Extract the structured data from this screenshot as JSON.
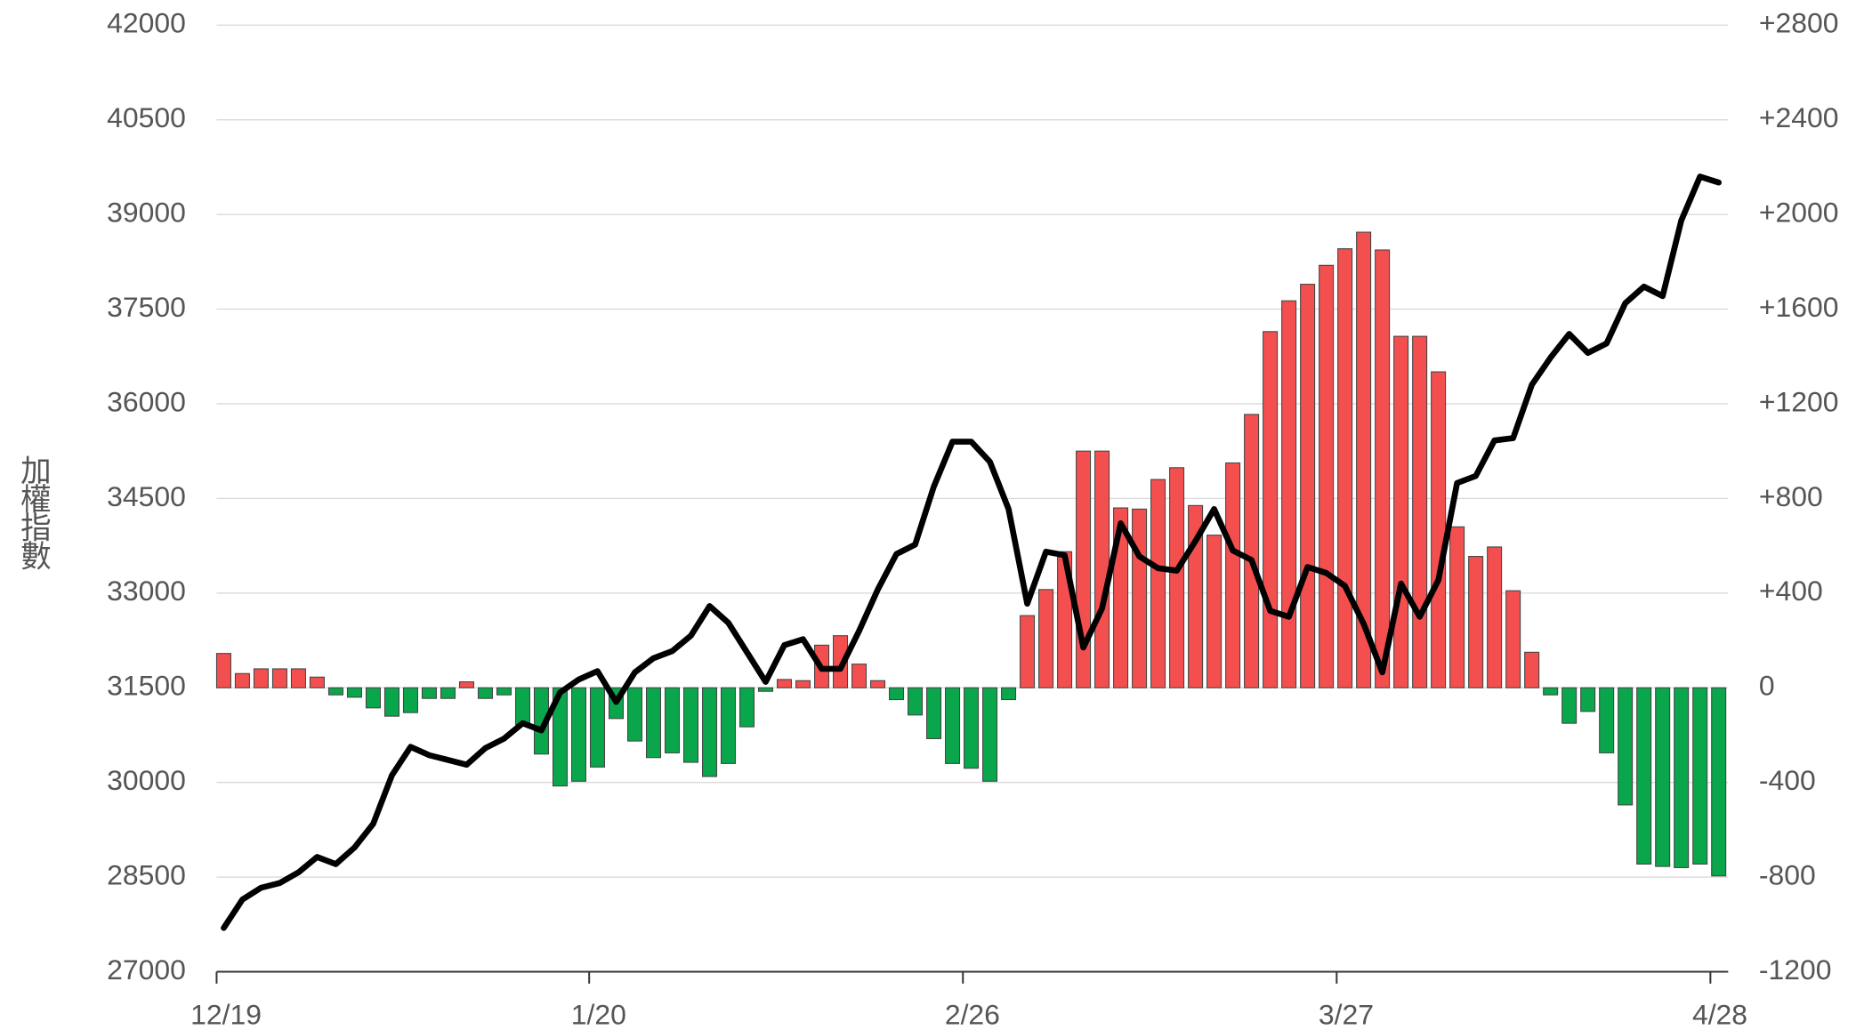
{
  "chart_data": {
    "type": "combo",
    "y_label": "加權指數",
    "categories": [
      "12/19",
      null,
      null,
      null,
      null,
      null,
      null,
      null,
      null,
      null,
      null,
      null,
      null,
      null,
      null,
      null,
      null,
      null,
      null,
      null,
      "1/20",
      null,
      null,
      null,
      null,
      null,
      null,
      null,
      null,
      null,
      null,
      null,
      null,
      null,
      null,
      null,
      null,
      null,
      null,
      null,
      "2/26",
      null,
      null,
      null,
      null,
      null,
      null,
      null,
      null,
      null,
      null,
      null,
      null,
      null,
      null,
      null,
      null,
      null,
      null,
      null,
      "3/27",
      null,
      null,
      null,
      null,
      null,
      null,
      null,
      null,
      null,
      null,
      null,
      null,
      null,
      null,
      null,
      null,
      null,
      null,
      null,
      "4/28"
    ],
    "ylim": [
      27000,
      42000
    ],
    "yticks": [
      27000,
      28500,
      30000,
      31500,
      33000,
      34500,
      36000,
      37500,
      39000,
      40500,
      42000
    ],
    "y2lim": [
      -1200,
      2800
    ],
    "y2ticks": [
      -1200,
      -800,
      -400,
      0,
      {
        "value": 400,
        "label": "+400"
      },
      {
        "value": 800,
        "label": "+800"
      },
      {
        "value": 1200,
        "label": "+1200"
      },
      {
        "value": 1600,
        "label": "+1600"
      },
      {
        "value": 2000,
        "label": "+2000"
      },
      {
        "value": 2400,
        "label": "+2400"
      },
      {
        "value": 2800,
        "label": "+2800"
      }
    ],
    "grid": true,
    "series": [
      {
        "type": "bar",
        "axis": "y2",
        "color": "#f44f4f",
        "negative_color": "#0aa64b",
        "values": [
          145,
          60,
          80,
          80,
          80,
          45,
          -30,
          -40,
          -85,
          -120,
          -105,
          -45,
          -45,
          25,
          -45,
          -30,
          -155,
          -280,
          -415,
          -395,
          -335,
          -130,
          -225,
          -295,
          -275,
          -315,
          -375,
          -320,
          -165,
          -15,
          35,
          30,
          180,
          220,
          100,
          30,
          -50,
          -115,
          -215,
          -320,
          -340,
          -395,
          -50,
          305,
          415,
          575,
          1000,
          1000,
          760,
          755,
          880,
          930,
          770,
          645,
          950,
          1155,
          1505,
          1635,
          1705,
          1785,
          1855,
          1925,
          1850,
          1485,
          1485,
          1335,
          680,
          555,
          595,
          410,
          150,
          -30,
          -150,
          -100,
          -275,
          -495,
          -745,
          -755,
          -760,
          -745,
          -795
        ]
      },
      {
        "type": "line",
        "axis": "y",
        "color": "#000000",
        "values": [
          27694,
          28144,
          28331,
          28406,
          28575,
          28819,
          28706,
          28969,
          29344,
          30113,
          30563,
          30431,
          30356,
          30281,
          30544,
          30694,
          30938,
          30825,
          31425,
          31631,
          31763,
          31275,
          31744,
          31969,
          32081,
          32325,
          32794,
          32531,
          32063,
          31594,
          32175,
          32269,
          31800,
          31800,
          32400,
          33056,
          33619,
          33769,
          34688,
          35400,
          35400,
          35081,
          34331,
          32831,
          33656,
          33600,
          32138,
          32756,
          34106,
          33581,
          33394,
          33356,
          33825,
          34331,
          33675,
          33525,
          32719,
          32625,
          33413,
          33319,
          33113,
          32513,
          31744,
          33150,
          32625,
          33206,
          34744,
          34856,
          35419,
          35456,
          36300,
          36731,
          37106,
          36806,
          36956,
          37594,
          37856,
          37706,
          38906,
          39600,
          39506
        ]
      }
    ]
  }
}
